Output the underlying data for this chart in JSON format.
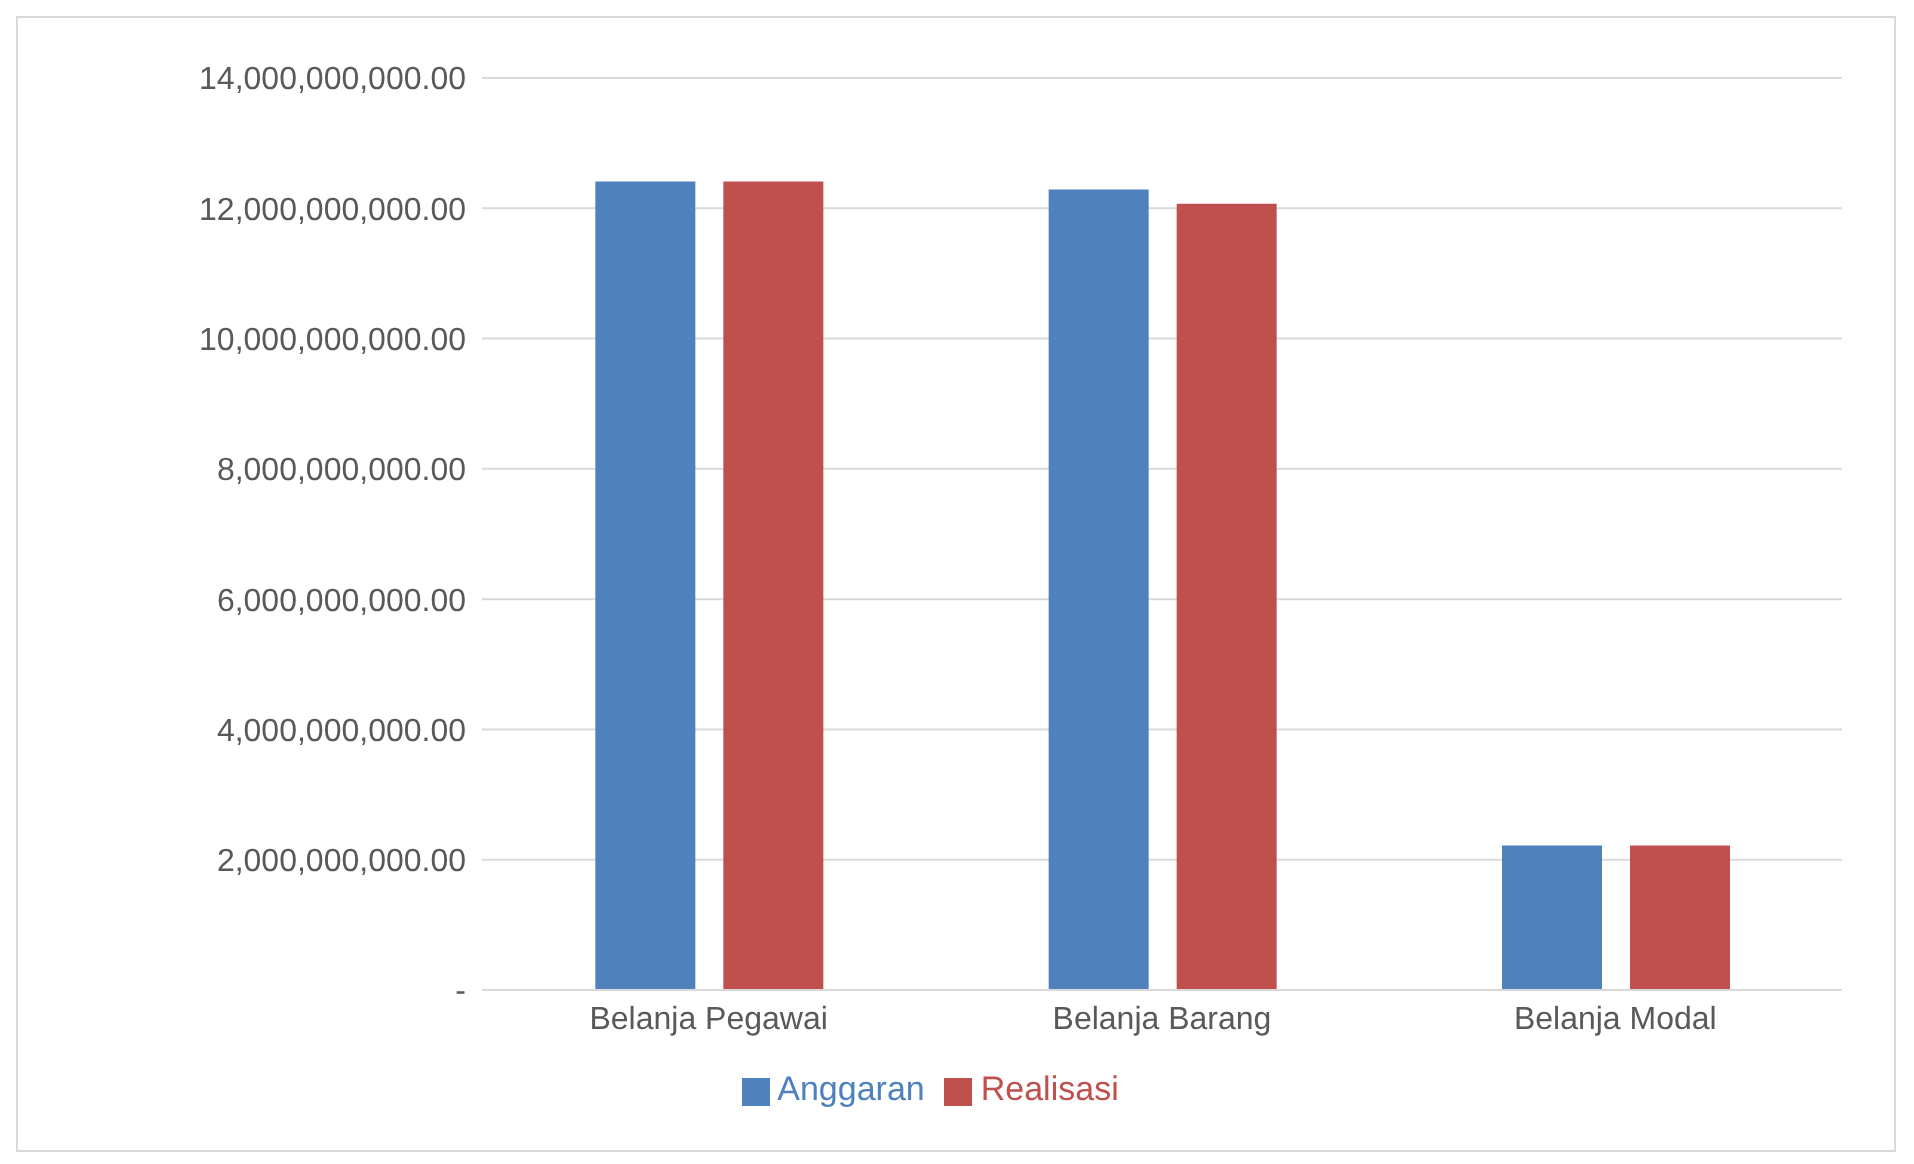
{
  "chart_data": {
    "type": "bar",
    "categories": [
      "Belanja Pegawai",
      "Belanja Barang",
      "Belanja Modal"
    ],
    "series": [
      {
        "name": "Anggaran",
        "color": "#4f81bd",
        "values": [
          12410000000,
          12290000000,
          2220000000
        ]
      },
      {
        "name": "Realisasi",
        "color": "#c0504d",
        "values": [
          12410000000,
          12070000000,
          2220000000
        ]
      }
    ],
    "ylim": [
      0,
      14000000000
    ],
    "yticks": [
      {
        "value": 0,
        "label": "-"
      },
      {
        "value": 2000000000,
        "label": "2,000,000,000.00"
      },
      {
        "value": 4000000000,
        "label": "4,000,000,000.00"
      },
      {
        "value": 6000000000,
        "label": "6,000,000,000.00"
      },
      {
        "value": 8000000000,
        "label": "8,000,000,000.00"
      },
      {
        "value": 10000000000,
        "label": "10,000,000,000.00"
      },
      {
        "value": 12000000000,
        "label": "12,000,000,000.00"
      },
      {
        "value": 14000000000,
        "label": "14,000,000,000.00"
      }
    ],
    "grid": "y",
    "legend": "bottom"
  }
}
